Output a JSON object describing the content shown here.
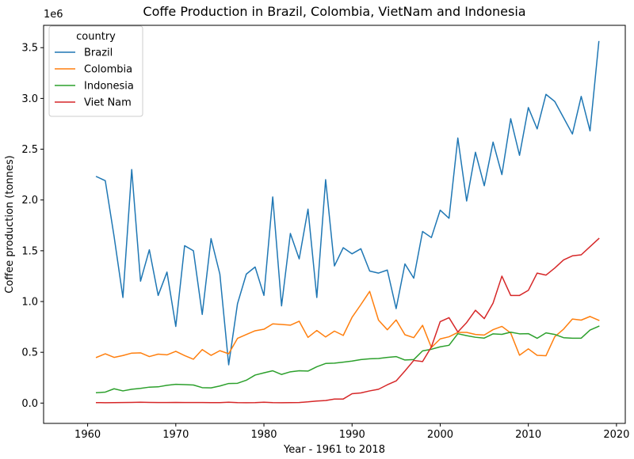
{
  "chart_data": {
    "type": "line",
    "title": "Coffe Production in Brazil, Colombia, VietNam and Indonesia",
    "xlabel": "Year - 1961 to 2018",
    "ylabel": "Coffee production (tonnes)",
    "y_offset_label": "1e6",
    "xlim": [
      1955,
      2021
    ],
    "ylim": [
      -200000,
      3720000
    ],
    "x_ticks": [
      1960,
      1970,
      1980,
      1990,
      2000,
      2010,
      2020
    ],
    "y_ticks": [
      0,
      500000,
      1000000,
      1500000,
      2000000,
      2500000,
      3000000,
      3500000
    ],
    "y_tick_labels": [
      "0.0",
      "0.5",
      "1.0",
      "1.5",
      "2.0",
      "2.5",
      "3.0",
      "3.5"
    ],
    "grid": false,
    "legend": {
      "title": "country",
      "placement": "top-left"
    },
    "x": [
      1961,
      1962,
      1963,
      1964,
      1965,
      1966,
      1967,
      1968,
      1969,
      1970,
      1971,
      1972,
      1973,
      1974,
      1975,
      1976,
      1977,
      1978,
      1979,
      1980,
      1981,
      1982,
      1983,
      1984,
      1985,
      1986,
      1987,
      1988,
      1989,
      1990,
      1991,
      1992,
      1993,
      1994,
      1995,
      1996,
      1997,
      1998,
      1999,
      2000,
      2001,
      2002,
      2003,
      2004,
      2005,
      2006,
      2007,
      2008,
      2009,
      2010,
      2011,
      2012,
      2013,
      2014,
      2015,
      2016,
      2017,
      2018
    ],
    "series": [
      {
        "name": "Brazil",
        "color": "#1f77b4",
        "values": [
          2230000,
          2190000,
          1640000,
          1040000,
          2300000,
          1200000,
          1510000,
          1060000,
          1290000,
          755000,
          1550000,
          1500000,
          873000,
          1620000,
          1270000,
          377000,
          978000,
          1270000,
          1340000,
          1060000,
          2030000,
          957000,
          1670000,
          1420000,
          1910000,
          1040000,
          2200000,
          1350000,
          1530000,
          1470000,
          1520000,
          1300000,
          1280000,
          1310000,
          930000,
          1370000,
          1230000,
          1690000,
          1630000,
          1900000,
          1820000,
          2610000,
          1990000,
          2470000,
          2140000,
          2570000,
          2250000,
          2800000,
          2440000,
          2910000,
          2700000,
          3040000,
          2970000,
          2810000,
          2650000,
          3020000,
          2680000,
          3560000
        ]
      },
      {
        "name": "Colombia",
        "color": "#ff7f0e",
        "values": [
          450000,
          485000,
          450000,
          468000,
          492000,
          495000,
          458000,
          482000,
          475000,
          510000,
          468000,
          432000,
          527000,
          470000,
          516000,
          486000,
          637000,
          675000,
          712000,
          727000,
          780000,
          774000,
          767000,
          806000,
          647000,
          715000,
          651000,
          709000,
          666000,
          845000,
          970000,
          1100000,
          817000,
          722000,
          819000,
          673000,
          644000,
          766000,
          547000,
          632000,
          653000,
          696000,
          696000,
          676000,
          670000,
          723000,
          755000,
          690000,
          471000,
          534000,
          470000,
          466000,
          654000,
          728000,
          828000,
          817000,
          853000,
          815000
        ]
      },
      {
        "name": "Indonesia",
        "color": "#2ca02c",
        "values": [
          102000,
          108000,
          141000,
          120000,
          136000,
          145000,
          157000,
          160000,
          175000,
          185000,
          182000,
          178000,
          152000,
          150000,
          168000,
          193000,
          195000,
          225000,
          276000,
          298000,
          318000,
          282000,
          308000,
          318000,
          315000,
          358000,
          390000,
          393000,
          403000,
          414000,
          428000,
          436000,
          439000,
          450000,
          458000,
          424000,
          428000,
          514000,
          530000,
          554000,
          569000,
          683000,
          664000,
          648000,
          640000,
          682000,
          677000,
          698000,
          682000,
          684000,
          638000,
          691000,
          676000,
          644000,
          639000,
          639000,
          719000,
          757000
        ]
      },
      {
        "name": "Viet Nam",
        "color": "#d62728",
        "values": [
          5000,
          4000,
          5000,
          6000,
          7000,
          8000,
          7000,
          6000,
          6000,
          7000,
          6000,
          6000,
          6000,
          5000,
          5000,
          8000,
          5000,
          4000,
          5000,
          8000,
          5000,
          4000,
          5000,
          6000,
          12000,
          20000,
          25000,
          40000,
          40000,
          92000,
          100000,
          120000,
          136000,
          180000,
          218000,
          316000,
          420000,
          409000,
          553000,
          802000,
          841000,
          700000,
          793000,
          914000,
          832000,
          985000,
          1250000,
          1060000,
          1060000,
          1110000,
          1280000,
          1260000,
          1330000,
          1410000,
          1450000,
          1460000,
          1540000,
          1620000
        ]
      }
    ]
  }
}
